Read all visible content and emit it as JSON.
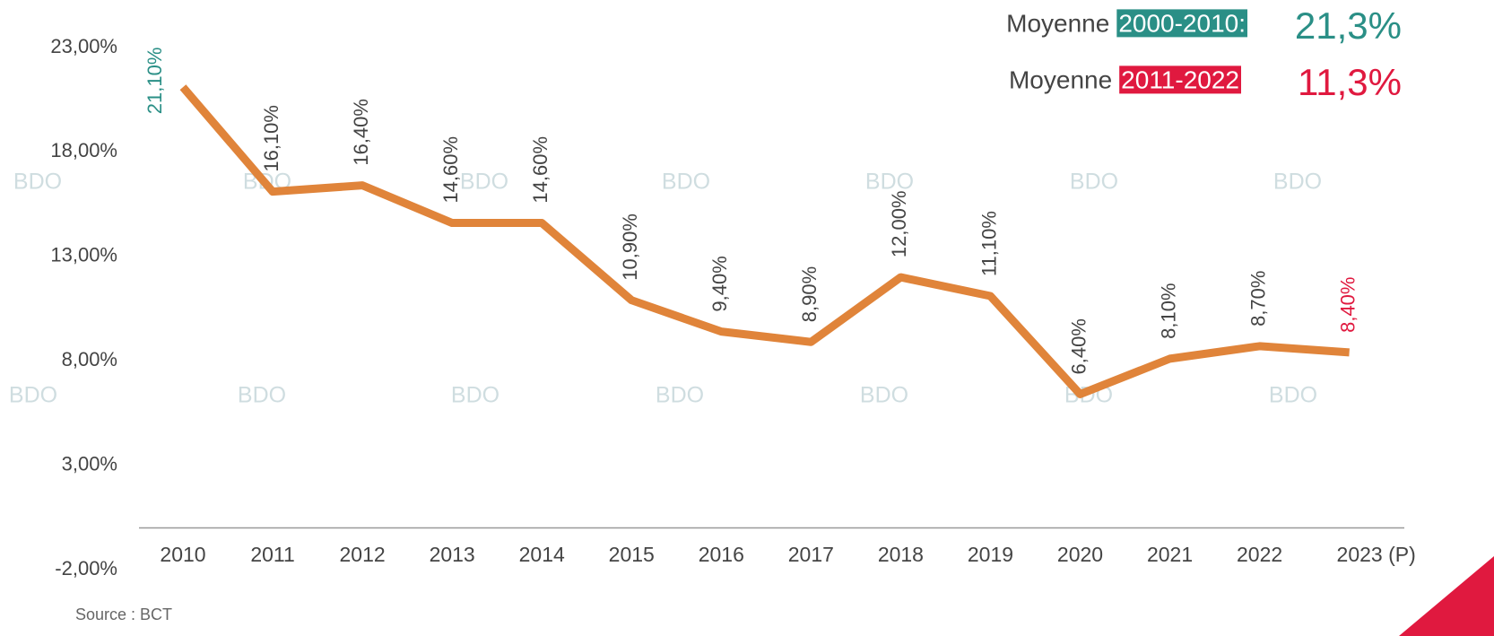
{
  "chart_data": {
    "type": "line",
    "categories": [
      "2010",
      "2011",
      "2012",
      "2013",
      "2014",
      "2015",
      "2016",
      "2017",
      "2018",
      "2019",
      "2020",
      "2021",
      "2022",
      "2023 (P)"
    ],
    "series": [
      {
        "name": "Taux",
        "color": "#e0843a",
        "values": [
          21.1,
          16.1,
          16.4,
          14.6,
          14.6,
          10.9,
          9.4,
          8.9,
          12.0,
          11.1,
          6.4,
          8.1,
          8.7,
          8.4
        ],
        "value_labels": [
          "21,10%",
          "16,10%",
          "16,40%",
          "14,60%",
          "14,60%",
          "10,90%",
          "9,40%",
          "8,90%",
          "12,00%",
          "11,10%",
          "6,40%",
          "8,10%",
          "8,70%",
          "8,40%"
        ]
      }
    ],
    "first_label_color": "#2a8f86",
    "last_label_color": "#e0193f",
    "label_color": "#444444",
    "ylim": [
      -2,
      23
    ],
    "yticks": [
      {
        "value": 23,
        "label": "23,00%"
      },
      {
        "value": 18,
        "label": "18,00%"
      },
      {
        "value": 13,
        "label": "13,00%"
      },
      {
        "value": 8,
        "label": "8,00%"
      },
      {
        "value": 3,
        "label": "3,00%"
      },
      {
        "value": -2,
        "label": "-2,00%"
      }
    ],
    "averages": [
      {
        "label": "Moyenne",
        "period": "2000-2010:",
        "value": "21,3%",
        "color": "#2a8f86"
      },
      {
        "label": "Moyenne",
        "period": "2011-2022",
        "value": "11,3%",
        "color": "#e0193f"
      }
    ],
    "watermark": "BDO",
    "source": "Source : BCT"
  }
}
